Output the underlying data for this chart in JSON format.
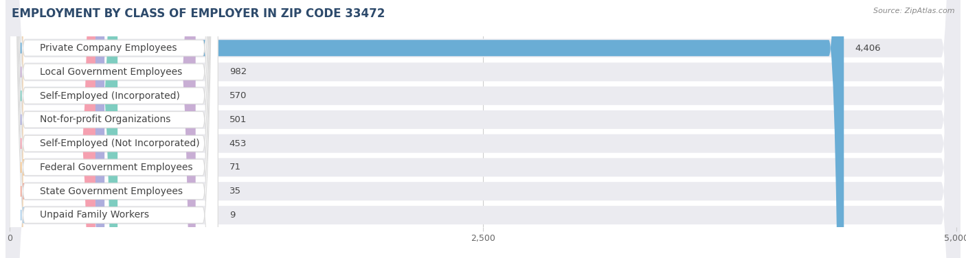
{
  "title": "EMPLOYMENT BY CLASS OF EMPLOYER IN ZIP CODE 33472",
  "source": "Source: ZipAtlas.com",
  "categories": [
    "Private Company Employees",
    "Local Government Employees",
    "Self-Employed (Incorporated)",
    "Not-for-profit Organizations",
    "Self-Employed (Not Incorporated)",
    "Federal Government Employees",
    "State Government Employees",
    "Unpaid Family Workers"
  ],
  "values": [
    4406,
    982,
    570,
    501,
    453,
    71,
    35,
    9
  ],
  "bar_colors": [
    "#6aadd5",
    "#c8aed4",
    "#7ecdc0",
    "#aeaedd",
    "#f5a0b0",
    "#f8c890",
    "#f0a898",
    "#a8cce8"
  ],
  "xlim": [
    0,
    5000
  ],
  "xticks": [
    0,
    2500,
    5000
  ],
  "xtick_labels": [
    "0",
    "2,500",
    "5,000"
  ],
  "background_color": "#ffffff",
  "row_bg_color": "#ebebf0",
  "label_box_color": "#ffffff",
  "title_fontsize": 12,
  "label_fontsize": 10,
  "value_fontsize": 9.5,
  "title_color": "#2d4a6b",
  "label_color": "#444444",
  "value_color": "#444444",
  "source_color": "#888888"
}
